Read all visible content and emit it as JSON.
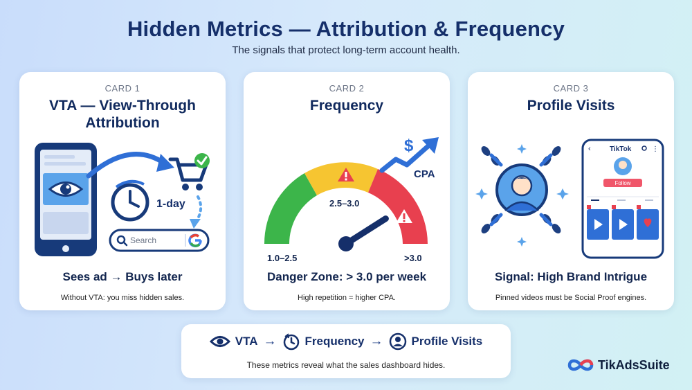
{
  "header": {
    "title": "Hidden Metrics — Attribution & Frequency",
    "subtitle": "The signals that protect long-term account health."
  },
  "cards": [
    {
      "label": "CARD 1",
      "title": "VTA — View-Through Attribution",
      "art": {
        "timer_label": "1-day",
        "search_placeholder": "Search"
      },
      "headline": "Sees ad → Buys later",
      "note": "Without VTA: you miss hidden sales."
    },
    {
      "label": "CARD 2",
      "title": "Frequency",
      "art": {
        "zone_low": "1.0–2.5",
        "zone_mid": "2.5–3.0",
        "zone_high": ">3.0",
        "trend_label": "CPA",
        "currency_symbol": "$",
        "needle_level": 0.82
      },
      "headline": "Danger Zone: > 3.0 per week",
      "note": "High repetition = higher CPA."
    },
    {
      "label": "CARD 3",
      "title": "Profile Visits",
      "art": {
        "app_name": "TikTok",
        "follow_label": "Follow"
      },
      "headline": "Signal: High Brand Intrigue",
      "note": "Pinned videos must be Social Proof engines."
    }
  ],
  "flow": {
    "steps": [
      "VTA",
      "Frequency",
      "Profile Visits"
    ],
    "arrow": "→",
    "icons": [
      "eye-icon",
      "clock-icon",
      "user-icon"
    ],
    "note": "These metrics reveal what the sales dashboard hides."
  },
  "brand": {
    "name": "TikAdsSuite"
  },
  "colors": {
    "navy": "#152f6a",
    "blue": "#2f6fd6",
    "green": "#3cb54a",
    "yellow": "#f6c531",
    "red": "#e8404f",
    "pink": "#f0566a"
  }
}
